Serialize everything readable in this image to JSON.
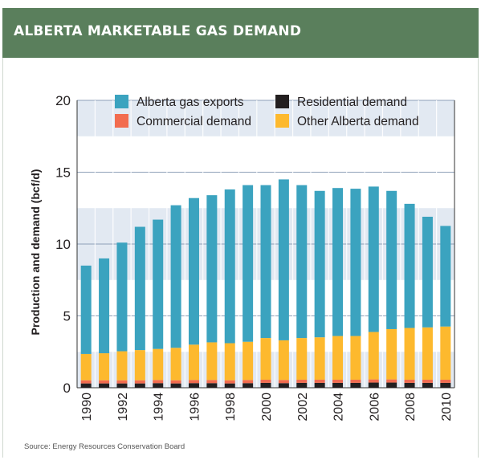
{
  "header": {
    "title": "ALBERTA MARKETABLE GAS DEMAND"
  },
  "source": "Source: Energy Resources Conservation Board",
  "chart_data": {
    "type": "bar",
    "stacked": true,
    "ylabel": "Production and demand (bcf/d)",
    "xlabel": "",
    "ylim": [
      0,
      20
    ],
    "yticks": [
      0,
      5,
      10,
      15,
      20
    ],
    "grid": true,
    "legend_position": "top",
    "categories": [
      "1990",
      "1991",
      "1992",
      "1993",
      "1994",
      "1995",
      "1996",
      "1997",
      "1998",
      "1999",
      "2000",
      "2001",
      "2002",
      "2003",
      "2004",
      "2005",
      "2006",
      "2007",
      "2008",
      "2009",
      "2010"
    ],
    "x_tick_labels": [
      "1990",
      "1992",
      "1994",
      "1996",
      "1998",
      "2000",
      "2002",
      "2004",
      "2006",
      "2008",
      "2010"
    ],
    "series": [
      {
        "name": "Residential demand",
        "color": "#231f20",
        "values": [
          0.3,
          0.3,
          0.3,
          0.3,
          0.32,
          0.3,
          0.32,
          0.32,
          0.3,
          0.32,
          0.34,
          0.32,
          0.34,
          0.34,
          0.34,
          0.34,
          0.36,
          0.36,
          0.34,
          0.34,
          0.34
        ]
      },
      {
        "name": "Commercial demand",
        "color": "#f26c4f",
        "values": [
          0.22,
          0.22,
          0.22,
          0.22,
          0.22,
          0.22,
          0.22,
          0.22,
          0.22,
          0.22,
          0.22,
          0.22,
          0.22,
          0.22,
          0.22,
          0.22,
          0.22,
          0.22,
          0.22,
          0.22,
          0.22
        ]
      },
      {
        "name": "Other Alberta demand",
        "color": "#fdb92e",
        "values": [
          1.83,
          1.88,
          2.02,
          2.1,
          2.16,
          2.26,
          2.46,
          2.62,
          2.58,
          2.66,
          2.9,
          2.76,
          2.9,
          2.95,
          3.04,
          3.04,
          3.3,
          3.5,
          3.6,
          3.64,
          3.7
        ]
      },
      {
        "name": "Alberta gas exports",
        "color": "#3ba3bf",
        "values": [
          6.15,
          6.6,
          7.56,
          8.58,
          9.0,
          9.92,
          10.2,
          10.24,
          10.7,
          10.9,
          10.64,
          11.2,
          10.64,
          10.19,
          10.3,
          10.25,
          10.12,
          9.62,
          8.64,
          7.7,
          7.0
        ]
      }
    ]
  }
}
